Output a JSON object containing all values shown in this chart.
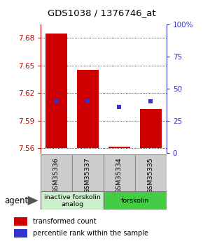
{
  "title": "GDS1038 / 1376746_at",
  "samples": [
    "GSM35336",
    "GSM35337",
    "GSM35334",
    "GSM35335"
  ],
  "bar_bottoms": [
    7.56,
    7.56,
    7.56,
    7.56
  ],
  "bar_tops": [
    7.685,
    7.645,
    7.562,
    7.603
  ],
  "percentile_pct": [
    40,
    40,
    36,
    40
  ],
  "ylim_left": [
    7.555,
    7.695
  ],
  "ylim_right": [
    0,
    100
  ],
  "yticks_left": [
    7.56,
    7.59,
    7.62,
    7.65,
    7.68
  ],
  "yticks_right": [
    0,
    25,
    50,
    75,
    100
  ],
  "ytick_labels_left": [
    "7.56",
    "7.59",
    "7.62",
    "7.65",
    "7.68"
  ],
  "ytick_labels_right": [
    "0",
    "25",
    "50",
    "75",
    "100%"
  ],
  "bar_color": "#cc0000",
  "dot_color": "#3333cc",
  "agent_groups": [
    {
      "label": "inactive forskolin\nanalog",
      "samples": [
        0,
        1
      ],
      "color": "#ccf0cc"
    },
    {
      "label": "forskolin",
      "samples": [
        2,
        3
      ],
      "color": "#44cc44"
    }
  ],
  "agent_label": "agent",
  "bar_width": 0.7,
  "left_axis_color": "#cc0000",
  "right_axis_color": "#3333cc",
  "grid_color": "#000000",
  "sample_box_color": "#cccccc",
  "sample_box_edge": "#888888"
}
